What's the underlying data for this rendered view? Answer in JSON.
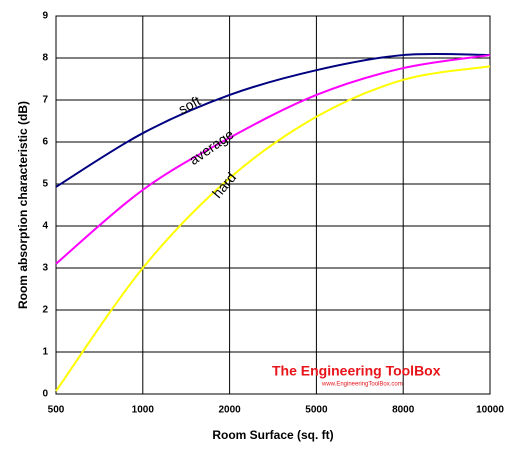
{
  "chart_data": {
    "type": "line",
    "x_label": "Room Surface (sq. ft)",
    "y_label": "Room absorption characteristic (dB)",
    "categories": [
      "500",
      "1000",
      "2000",
      "5000",
      "8000",
      "10000"
    ],
    "series": [
      {
        "name": "soft",
        "color": "#000080",
        "values": [
          4.93,
          6.21,
          7.12,
          7.71,
          8.07,
          8.07
        ]
      },
      {
        "name": "average",
        "color": "#ff00ff",
        "values": [
          3.1,
          4.86,
          6.1,
          7.12,
          7.76,
          8.07
        ]
      },
      {
        "name": "hard",
        "color": "#ffff00",
        "values": [
          0.07,
          3.0,
          5.14,
          6.6,
          7.48,
          7.8
        ]
      }
    ],
    "ylim": [
      0,
      9
    ],
    "yticks": [
      0,
      1,
      2,
      3,
      4,
      5,
      6,
      7,
      8,
      9
    ],
    "grid": true,
    "watermark": {
      "title": "The Engineering ToolBox",
      "url": "www.EngineeringToolBox.com"
    }
  }
}
